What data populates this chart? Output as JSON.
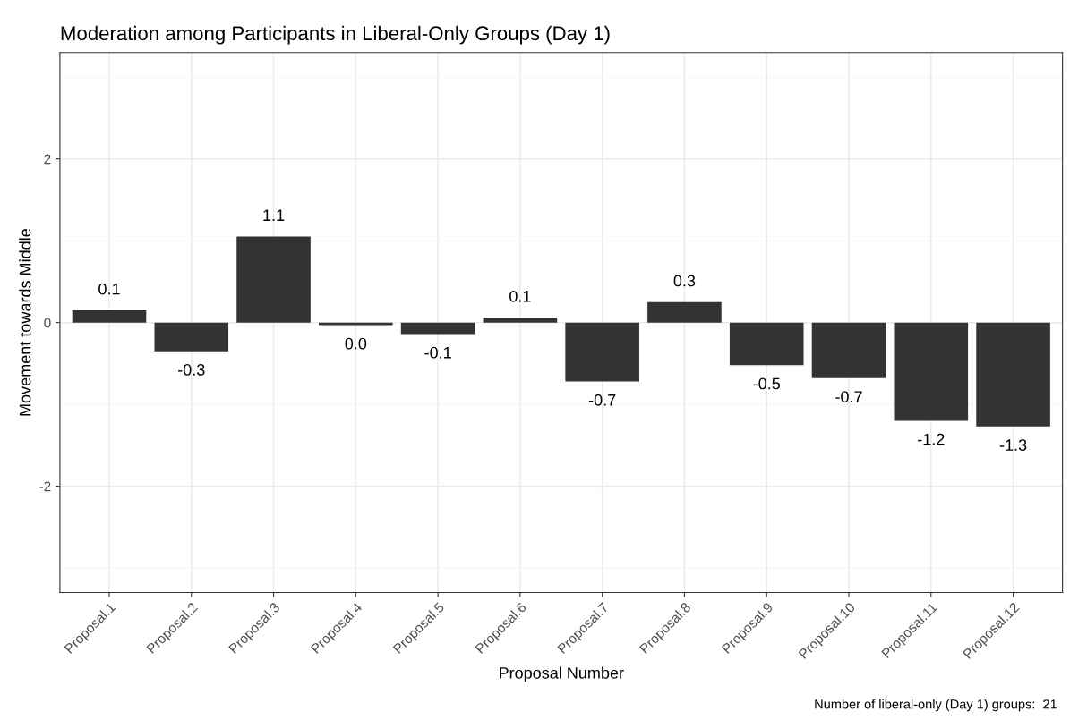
{
  "chart_data": {
    "type": "bar",
    "title": "Moderation among Participants in Liberal-Only Groups (Day 1)",
    "xlabel": "Proposal Number",
    "ylabel": "Movement towards Middle",
    "categories": [
      "Proposal.1",
      "Proposal.2",
      "Proposal.3",
      "Proposal.4",
      "Proposal.5",
      "Proposal.6",
      "Proposal.7",
      "Proposal.8",
      "Proposal.9",
      "Proposal.10",
      "Proposal.11",
      "Proposal.12"
    ],
    "values": [
      0.15,
      -0.35,
      1.05,
      -0.03,
      -0.14,
      0.06,
      -0.72,
      0.25,
      -0.52,
      -0.68,
      -1.2,
      -1.27
    ],
    "value_labels": [
      "0.1",
      "-0.3",
      "1.1",
      "0.0",
      "-0.1",
      "0.1",
      "-0.7",
      "0.3",
      "-0.5",
      "-0.7",
      "-1.2",
      "-1.3"
    ],
    "color": "#333333",
    "ylim": [
      -3.3,
      3.3
    ],
    "yticks": [
      {
        "value": -3,
        "label": null
      },
      -2,
      {
        "value": -1,
        "label": null
      },
      0,
      {
        "value": 1,
        "label": null
      },
      2,
      {
        "value": 3,
        "label": null
      }
    ],
    "grid": true,
    "annotations": [
      "Number of liberal-only (Day 1) groups:  21"
    ]
  }
}
